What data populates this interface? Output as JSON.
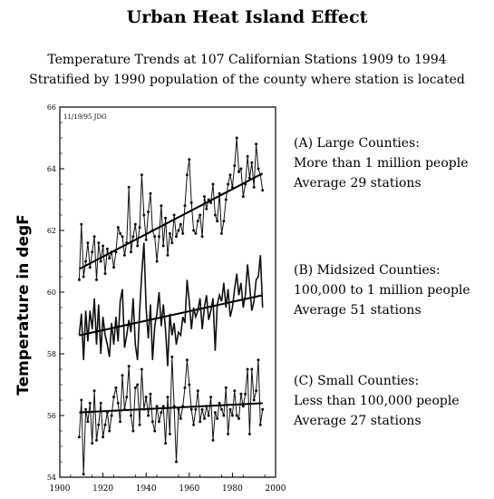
{
  "title": "Urban Heat Island Effect",
  "subtitle_line1": "Temperature Trends at 107 Californian Stations 1909 to 1994",
  "subtitle_line2": "Stratified by 1990 population of the county where station is located",
  "annotation": "11/19/95 JDG",
  "legend": [
    {
      "name": "(A) Large Counties:",
      "line2": "More than 1 million people",
      "line3": "Average 29 stations"
    },
    {
      "name": "(B) Midsized Counties:",
      "line2": "100,000 to 1 million people",
      "line3": "Average 51 stations"
    },
    {
      "name": "(C) Small Counties:",
      "line2": "Less than 100,000 people",
      "line3": "Average 27 stations"
    }
  ],
  "chart_data": {
    "type": "line",
    "ylabel": "Temperature in degF",
    "xlabel": "",
    "xlim": [
      1900,
      2000
    ],
    "ylim": [
      54,
      66
    ],
    "xticks": [
      "1900",
      "1920",
      "1940",
      "1960",
      "1980",
      "2000"
    ],
    "yticks": [
      "54",
      "56",
      "58",
      "60",
      "62",
      "64",
      "66"
    ],
    "grid": false,
    "start_year": 1909,
    "series": [
      {
        "name": "(A) Large Counties",
        "values": [
          60.4,
          62.2,
          60.5,
          61.0,
          61.6,
          60.8,
          61.3,
          61.8,
          60.4,
          61.6,
          61.0,
          61.5,
          60.6,
          61.4,
          61.1,
          61.3,
          60.8,
          61.3,
          62.1,
          61.9,
          61.8,
          61.2,
          61.6,
          63.4,
          61.3,
          61.8,
          62.2,
          61.5,
          62.1,
          63.8,
          62.5,
          61.7,
          62.6,
          63.2,
          62.0,
          61.8,
          61.0,
          61.8,
          62.8,
          61.5,
          62.4,
          61.2,
          61.9,
          61.6,
          62.5,
          61.8,
          62.0,
          62.2,
          61.9,
          62.8,
          63.8,
          64.3,
          62.9,
          62.0,
          61.9,
          62.3,
          62.5,
          61.8,
          63.1,
          62.7,
          63.0,
          62.9,
          63.5,
          62.5,
          62.3,
          63.2,
          61.9,
          62.3,
          63.0,
          63.5,
          63.8,
          63.4,
          64.1,
          65.0,
          63.9,
          64.0,
          63.1,
          63.5,
          64.4,
          63.7,
          64.2,
          63.4,
          64.8,
          64.0,
          63.8,
          63.3
        ],
        "trend": [
          60.75,
          63.85
        ]
      },
      {
        "name": "(B) Midsized Counties",
        "values": [
          58.6,
          59.3,
          57.8,
          59.4,
          58.4,
          59.4,
          58.8,
          59.8,
          58.3,
          59.6,
          58.0,
          59.2,
          58.6,
          58.3,
          57.9,
          59.0,
          58.3,
          59.2,
          58.4,
          59.7,
          60.1,
          58.2,
          58.6,
          59.1,
          58.7,
          59.8,
          58.3,
          57.8,
          59.4,
          60.6,
          61.6,
          59.5,
          58.5,
          59.6,
          57.8,
          58.9,
          59.3,
          60.0,
          58.9,
          59.6,
          58.8,
          57.6,
          59.3,
          58.6,
          59.0,
          58.3,
          58.7,
          58.6,
          59.2,
          59.0,
          60.4,
          59.7,
          58.8,
          59.5,
          59.2,
          59.4,
          59.8,
          58.8,
          59.5,
          59.9,
          59.1,
          59.4,
          59.8,
          58.1,
          59.6,
          59.9,
          59.7,
          60.3,
          59.5,
          60.1,
          59.2,
          59.5,
          60.1,
          60.6,
          59.9,
          60.3,
          59.5,
          59.9,
          60.9,
          60.2,
          59.4,
          59.7,
          60.4,
          60.5,
          61.2,
          59.5
        ],
        "trend": [
          58.6,
          59.9
        ]
      },
      {
        "name": "(C) Small Counties",
        "values": [
          55.3,
          56.5,
          54.1,
          56.2,
          55.8,
          56.4,
          55.1,
          56.8,
          55.2,
          55.7,
          56.4,
          55.3,
          55.7,
          56.1,
          55.5,
          56.0,
          56.6,
          56.9,
          56.4,
          55.8,
          57.3,
          56.2,
          56.6,
          57.6,
          56.0,
          55.5,
          56.9,
          57.0,
          55.7,
          57.5,
          56.2,
          56.6,
          56.0,
          56.7,
          55.8,
          55.5,
          56.3,
          55.8,
          56.1,
          56.3,
          55.1,
          56.6,
          55.4,
          57.9,
          56.3,
          54.5,
          56.2,
          55.9,
          56.3,
          56.9,
          57.8,
          57.0,
          56.2,
          55.7,
          56.2,
          56.8,
          55.8,
          56.2,
          55.9,
          56.3,
          56.0,
          56.6,
          55.2,
          56.1,
          55.9,
          56.4,
          56.2,
          56.0,
          56.9,
          55.4,
          56.2,
          56.0,
          56.8,
          56.0,
          55.9,
          56.7,
          56.3,
          56.7,
          57.5,
          55.4,
          57.5,
          56.5,
          56.8,
          57.8,
          55.7,
          56.2
        ],
        "trend": [
          56.1,
          56.4
        ]
      }
    ]
  }
}
